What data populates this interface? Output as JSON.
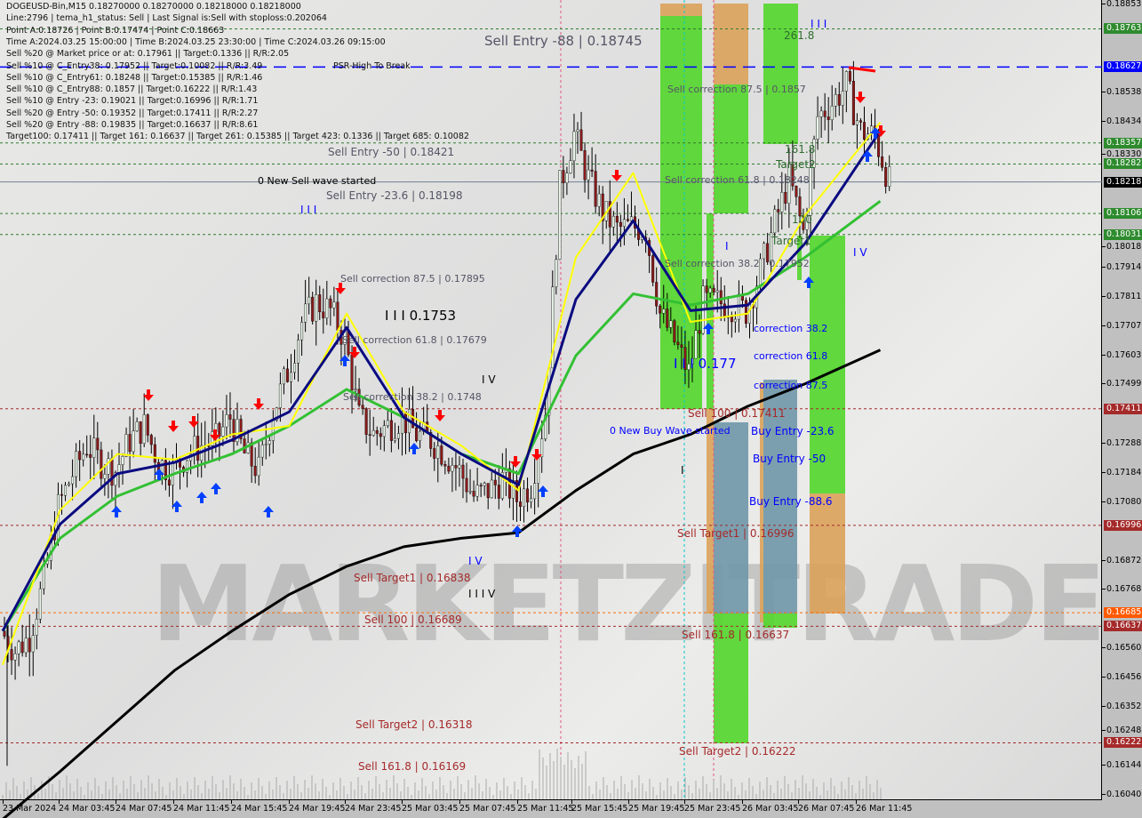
{
  "info_panel": {
    "lines": [
      "DOGEUSD-Bin,M15  0.18270000 0.18270000 0.18218000 0.18218000",
      "Line:2796 | tema_h1_status: Sell | Last Signal is:Sell with stoploss:0.202064",
      "Point A:0.18726 | Point B:0.17474 | Point C:0.18663",
      "Time A:2024.03.25 15:00:00 | Time B:2024.03.25 23:30:00 | Time C:2024.03.26 09:15:00",
      "Sell %20 @ Market price or at: 0.17961 || Target:0.1336 || R/R:2.05",
      "Sell %10 @ C_Entry38: 0.17952 || Target:0.10082 || R/R:3.49",
      "Sell %10 @ C_Entry61: 0.18248 || Target:0.15385 || R/R:1.46",
      "Sell %10 @ C_Entry88: 0.1857 || Target:0.16222 || R/R:1.43",
      "Sell %10 @ Entry -23: 0.19021 || Target:0.16996 || R/R:1.71",
      "Sell %20 @ Entry -50: 0.19352 || Target:0.17411 || R/R:2.27",
      "Sell %20 @ Entry -88: 0.19835 || Target:0.16637 || R/R:8.61",
      "Target100: 0.17411 || Target 161: 0.16637 || Target 261: 0.15385 || Target 423: 0.1336 || Target 685: 0.10082"
    ],
    "overlap_text": "PSR-High To Break"
  },
  "watermark": "MARKETZITRADE",
  "annotations": {
    "sell_entry_88": "Sell Entry -88 | 0.18745",
    "sell_entry_50": "Sell Entry -50 | 0.18421",
    "new_sell_wave": "0 New Sell wave started",
    "sell_entry_23": "Sell Entry -23.6 | 0.18198",
    "wave_iii_a": "I I I",
    "sell_corr_875_a": "Sell correction 87.5 | 0.17895",
    "wave_iii_price": "I I I 0.1753",
    "sell_corr_618_a": "Sell correction 61.8 | 0.17679",
    "wave_iv_a": "I V",
    "sell_corr_382_a": "Sell correction 38.2 | 0.1748",
    "wave_iv_b": "I V",
    "wave_iii_v": "I I I   V",
    "sell_target1_a": "Sell Target1 | 0.16838",
    "sell_100_a": "Sell 100 | 0.16689",
    "sell_target2_a": "Sell Target2 | 0.16318",
    "sell_1618_a": "Sell 161.8 | 0.16169",
    "sell_corr_875_b": "Sell correction 87.5 | 0.1857",
    "sell_corr_618_b": "Sell correction 61.8 | 0.18248",
    "sell_corr_382_b": "Sell correction 38.2 | 0.17952",
    "lvl_2618": "261.8",
    "lvl_1618": "161.8",
    "lvl_target2": "Target2",
    "lvl_100": "100",
    "lvl_target1": "Target1",
    "corr_382": "correction 38.2",
    "corr_618": "correction 61.8",
    "corr_875": "correction 87.5",
    "wave_iii_b": "I I I 0.177",
    "sell_100_b": "Sell 100 | 0.17411",
    "new_buy_wave": "0 New Buy Wave started",
    "buy_entry_236": "Buy Entry -23.6",
    "buy_entry_50": "Buy Entry -50",
    "buy_entry_886": "Buy Entry -88.6",
    "sell_target1_b": "Sell Target1 | 0.16996",
    "sell_1618_b": "Sell 161.8 | 0.16637",
    "sell_target2_b": "Sell Target2 | 0.16222",
    "wave_iii_c": "I I I",
    "wave_iv_c": "I V",
    "wave_i_a": "I",
    "wave_i_b": "I"
  },
  "colors": {
    "bull": "#e8f5e8",
    "bear": "#8b1a1a",
    "ma_slow": "#000000",
    "ma_mid": "#33c033",
    "ma_fast": "#0a0a80",
    "ma_tema": "#ffff00",
    "zone_green": "#52d62a",
    "zone_orange": "#dba25a",
    "zone_blue": "#6f97a8"
  },
  "chart_data": {
    "type": "candlestick",
    "symbol": "DOGEUSD-Bin,M15",
    "ylim": [
      0.1604,
      0.18853
    ],
    "y_ticks": [
      "0.18853",
      "0.18538",
      "0.18434",
      "0.18330",
      "0.18018",
      "0.17914",
      "0.17811",
      "0.17707",
      "0.17603",
      "0.17499",
      "0.17288",
      "0.17184",
      "0.17080",
      "0.16872",
      "0.16768",
      "0.16560",
      "0.16456",
      "0.16352",
      "0.16248",
      "0.16144",
      "0.16040"
    ],
    "x_ticks": [
      "23 Mar 2024",
      "24 Mar 03:45",
      "24 Mar 07:45",
      "24 Mar 11:45",
      "24 Mar 15:45",
      "24 Mar 19:45",
      "24 Mar 23:45",
      "25 Mar 03:45",
      "25 Mar 07:45",
      "25 Mar 11:45",
      "25 Mar 15:45",
      "25 Mar 19:45",
      "25 Mar 23:45",
      "26 Mar 03:45",
      "26 Mar 07:45",
      "26 Mar 11:45"
    ],
    "hourly_close": [
      0.1662,
      0.1655,
      0.166,
      0.168,
      0.1706,
      0.1718,
      0.1728,
      0.1722,
      0.1719,
      0.173,
      0.1735,
      0.1722,
      0.1719,
      0.1725,
      0.1728,
      0.173,
      0.1738,
      0.1725,
      0.1719,
      0.174,
      0.1754,
      0.1772,
      0.1779,
      0.1776,
      0.1766,
      0.1738,
      0.1732,
      0.1735,
      0.1738,
      0.1732,
      0.173,
      0.1725,
      0.1719,
      0.171,
      0.1712,
      0.1716,
      0.1709,
      0.1714,
      0.174,
      0.182,
      0.1839,
      0.1823,
      0.1811,
      0.1805,
      0.1806,
      0.1805,
      0.1775,
      0.1765,
      0.1754,
      0.1779,
      0.1779,
      0.1778,
      0.1776,
      0.179,
      0.1807,
      0.1823,
      0.1804,
      0.1845,
      0.185,
      0.1856,
      0.184,
      0.1838,
      0.18218
    ],
    "moving_averages_4h": {
      "slow_black": [
        0.1595,
        0.1612,
        0.163,
        0.1648,
        0.1662,
        0.1675,
        0.1685,
        0.1692,
        0.1695,
        0.1697,
        0.1712,
        0.1725,
        0.1732,
        0.1742,
        0.175,
        0.1762
      ],
      "green": [
        0.1662,
        0.1695,
        0.171,
        0.1718,
        0.1725,
        0.1735,
        0.1748,
        0.1738,
        0.1725,
        0.1718,
        0.176,
        0.1782,
        0.1778,
        0.1782,
        0.1795,
        0.1815
      ],
      "navy": [
        0.1662,
        0.17,
        0.1718,
        0.1722,
        0.173,
        0.174,
        0.177,
        0.1738,
        0.1725,
        0.1714,
        0.178,
        0.1808,
        0.1776,
        0.1778,
        0.18,
        0.184
      ],
      "yellow": [
        0.165,
        0.1705,
        0.1725,
        0.1723,
        0.1732,
        0.1735,
        0.1775,
        0.174,
        0.1728,
        0.1712,
        0.1795,
        0.1825,
        0.1772,
        0.1775,
        0.181,
        0.1843
      ]
    },
    "levels": [
      {
        "price": 0.18763,
        "label": "0.18763",
        "kind": "green"
      },
      {
        "price": 0.18627,
        "label": "0.18627",
        "kind": "blue"
      },
      {
        "price": 0.18357,
        "label": "0.18357",
        "kind": "green"
      },
      {
        "price": 0.18282,
        "label": "0.18282",
        "kind": "green"
      },
      {
        "price": 0.18218,
        "label": "0.18218",
        "kind": "current"
      },
      {
        "price": 0.18106,
        "label": "0.18106",
        "kind": "green"
      },
      {
        "price": 0.18031,
        "label": "0.18031",
        "kind": "green"
      },
      {
        "price": 0.17411,
        "label": "0.17411",
        "kind": "red"
      },
      {
        "price": 0.16996,
        "label": "0.16996",
        "kind": "red"
      },
      {
        "price": 0.16685,
        "label": "0.16685",
        "kind": "orange"
      },
      {
        "price": 0.16637,
        "label": "0.16637",
        "kind": "red"
      },
      {
        "price": 0.16222,
        "label": "0.16222",
        "kind": "red"
      }
    ]
  }
}
